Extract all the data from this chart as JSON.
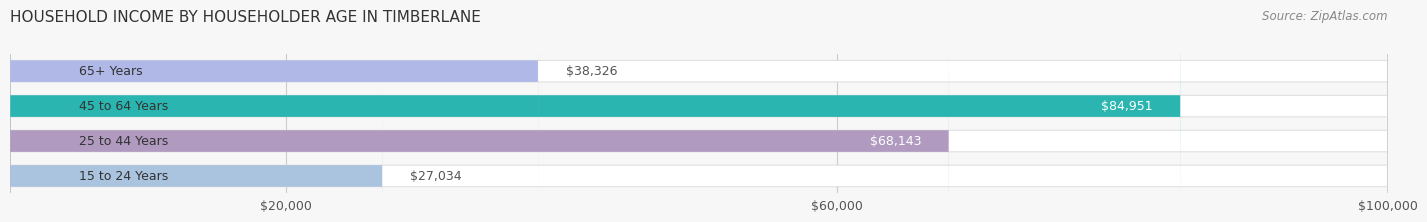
{
  "title": "HOUSEHOLD INCOME BY HOUSEHOLDER AGE IN TIMBERLANE",
  "source": "Source: ZipAtlas.com",
  "categories": [
    "15 to 24 Years",
    "25 to 44 Years",
    "45 to 64 Years",
    "65+ Years"
  ],
  "values": [
    27034,
    68143,
    84951,
    38326
  ],
  "bar_colors": [
    "#aac4e0",
    "#b09abf",
    "#2ab5b0",
    "#b0b8e8"
  ],
  "bar_bg_color": "#f0f0f0",
  "label_colors": [
    "#555555",
    "#ffffff",
    "#ffffff",
    "#555555"
  ],
  "xlim": [
    0,
    100000
  ],
  "xticks": [
    20000,
    60000,
    100000
  ],
  "xtick_labels": [
    "$20,000",
    "$60,000",
    "$100,000"
  ],
  "background_color": "#f7f7f7",
  "bar_bg_outer_color": "#e8e8e8",
  "title_fontsize": 11,
  "source_fontsize": 8.5,
  "label_fontsize": 9,
  "tick_fontsize": 9,
  "category_fontsize": 9
}
